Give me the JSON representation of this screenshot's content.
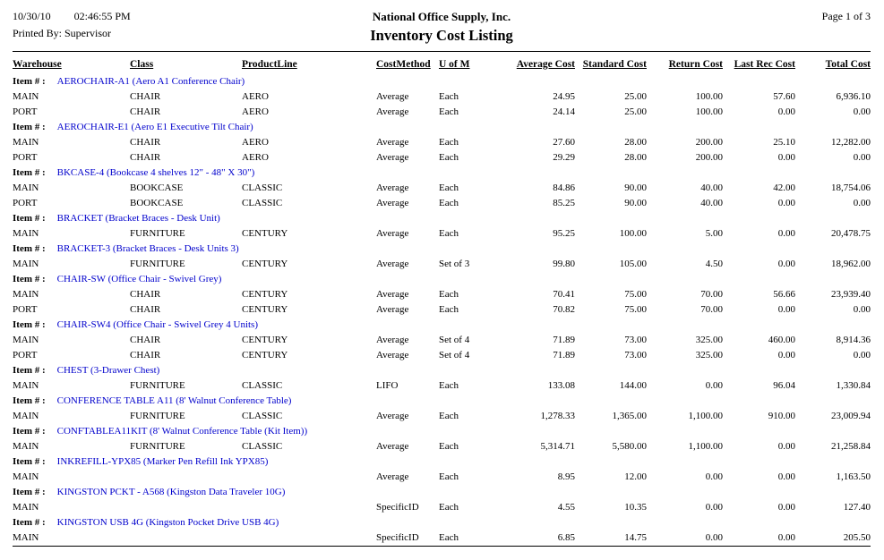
{
  "header": {
    "date": "10/30/10",
    "time": "02:46:55 PM",
    "printed_by": "Printed By: Supervisor",
    "company": "National Office Supply, Inc.",
    "title": "Inventory Cost Listing",
    "page": "Page 1 of  3"
  },
  "table": {
    "item_label": "Item # :",
    "columns": [
      "Warehouse",
      "Class",
      "ProductLine",
      "CostMethod",
      "U of M",
      "Average Cost",
      "Standard Cost",
      "Return Cost",
      "Last Rec Cost",
      "Total Cost"
    ],
    "groups": [
      {
        "item": "AEROCHAIR-A1 (Aero A1 Conference Chair)",
        "rows": [
          [
            "MAIN",
            "CHAIR",
            "AERO",
            "Average",
            "Each",
            "24.95",
            "25.00",
            "100.00",
            "57.60",
            "6,936.10"
          ],
          [
            "PORT",
            "CHAIR",
            "AERO",
            "Average",
            "Each",
            "24.14",
            "25.00",
            "100.00",
            "0.00",
            "0.00"
          ]
        ]
      },
      {
        "item": "AEROCHAIR-E1 (Aero E1 Executive Tilt Chair)",
        "rows": [
          [
            "MAIN",
            "CHAIR",
            "AERO",
            "Average",
            "Each",
            "27.60",
            "28.00",
            "200.00",
            "25.10",
            "12,282.00"
          ],
          [
            "PORT",
            "CHAIR",
            "AERO",
            "Average",
            "Each",
            "29.29",
            "28.00",
            "200.00",
            "0.00",
            "0.00"
          ]
        ]
      },
      {
        "item": "BKCASE-4 (Bookcase 4 shelves 12\" - 48\" X 30\")",
        "rows": [
          [
            "MAIN",
            "BOOKCASE",
            "CLASSIC",
            "Average",
            "Each",
            "84.86",
            "90.00",
            "40.00",
            "42.00",
            "18,754.06"
          ],
          [
            "PORT",
            "BOOKCASE",
            "CLASSIC",
            "Average",
            "Each",
            "85.25",
            "90.00",
            "40.00",
            "0.00",
            "0.00"
          ]
        ]
      },
      {
        "item": "BRACKET (Bracket Braces - Desk Unit)",
        "rows": [
          [
            "MAIN",
            "FURNITURE",
            "CENTURY",
            "Average",
            "Each",
            "95.25",
            "100.00",
            "5.00",
            "0.00",
            "20,478.75"
          ]
        ]
      },
      {
        "item": "BRACKET-3 (Bracket Braces - Desk Units 3)",
        "rows": [
          [
            "MAIN",
            "FURNITURE",
            "CENTURY",
            "Average",
            "Set of 3",
            "99.80",
            "105.00",
            "4.50",
            "0.00",
            "18,962.00"
          ]
        ]
      },
      {
        "item": "CHAIR-SW (Office Chair - Swivel Grey)",
        "rows": [
          [
            "MAIN",
            "CHAIR",
            "CENTURY",
            "Average",
            "Each",
            "70.41",
            "75.00",
            "70.00",
            "56.66",
            "23,939.40"
          ],
          [
            "PORT",
            "CHAIR",
            "CENTURY",
            "Average",
            "Each",
            "70.82",
            "75.00",
            "70.00",
            "0.00",
            "0.00"
          ]
        ]
      },
      {
        "item": "CHAIR-SW4 (Office Chair - Swivel Grey 4 Units)",
        "rows": [
          [
            "MAIN",
            "CHAIR",
            "CENTURY",
            "Average",
            "Set of 4",
            "71.89",
            "73.00",
            "325.00",
            "460.00",
            "8,914.36"
          ],
          [
            "PORT",
            "CHAIR",
            "CENTURY",
            "Average",
            "Set of 4",
            "71.89",
            "73.00",
            "325.00",
            "0.00",
            "0.00"
          ]
        ]
      },
      {
        "item": "CHEST (3-Drawer Chest)",
        "rows": [
          [
            "MAIN",
            "FURNITURE",
            "CLASSIC",
            "LIFO",
            "Each",
            "133.08",
            "144.00",
            "0.00",
            "96.04",
            "1,330.84"
          ]
        ]
      },
      {
        "item": "CONFERENCE TABLE A11 (8' Walnut Conference Table)",
        "rows": [
          [
            "MAIN",
            "FURNITURE",
            "CLASSIC",
            "Average",
            "Each",
            "1,278.33",
            "1,365.00",
            "1,100.00",
            "910.00",
            "23,009.94"
          ]
        ]
      },
      {
        "item": "CONFTABLEA11KIT (8' Walnut Conference Table (Kit Item))",
        "rows": [
          [
            "MAIN",
            "FURNITURE",
            "CLASSIC",
            "Average",
            "Each",
            "5,314.71",
            "5,580.00",
            "1,100.00",
            "0.00",
            "21,258.84"
          ]
        ]
      },
      {
        "item": "INKREFILL-YPX85 (Marker Pen Refill Ink YPX85)",
        "rows": [
          [
            "MAIN",
            "",
            "",
            "Average",
            "Each",
            "8.95",
            "12.00",
            "0.00",
            "0.00",
            "1,163.50"
          ]
        ]
      },
      {
        "item": "KINGSTON PCKT - A568 (Kingston Data Traveler 10G)",
        "rows": [
          [
            "MAIN",
            "",
            "",
            "SpecificID",
            "Each",
            "4.55",
            "10.35",
            "0.00",
            "0.00",
            "127.40"
          ]
        ]
      },
      {
        "item": "KINGSTON USB 4G (Kingston Pocket Drive USB 4G)",
        "rows": [
          [
            "MAIN",
            "",
            "",
            "SpecificID",
            "Each",
            "6.85",
            "14.75",
            "0.00",
            "0.00",
            "205.50"
          ]
        ]
      }
    ]
  }
}
